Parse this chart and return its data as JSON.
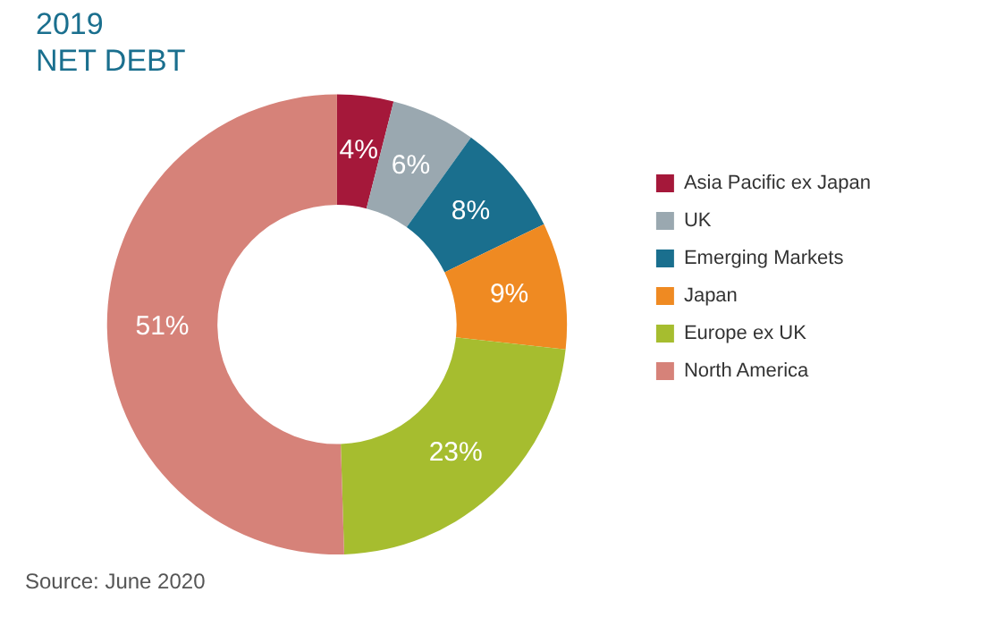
{
  "chart_data": {
    "type": "donut",
    "title": "2019",
    "subtitle": "NET DEBT",
    "categories": [
      "Asia Pacific ex Japan",
      "UK",
      "Emerging Markets",
      "Japan",
      "Europe ex UK",
      "North America"
    ],
    "values": [
      4,
      6,
      8,
      9,
      23,
      51
    ],
    "colors": [
      "#a5183a",
      "#9aa8b0",
      "#1a6f8e",
      "#ef8a22",
      "#a6bd2f",
      "#d68279"
    ],
    "value_labels": [
      "4%",
      "6%",
      "8%",
      "9%",
      "23%",
      "51%"
    ],
    "legend": "right",
    "annotations": [
      "Source: June 2020"
    ]
  }
}
